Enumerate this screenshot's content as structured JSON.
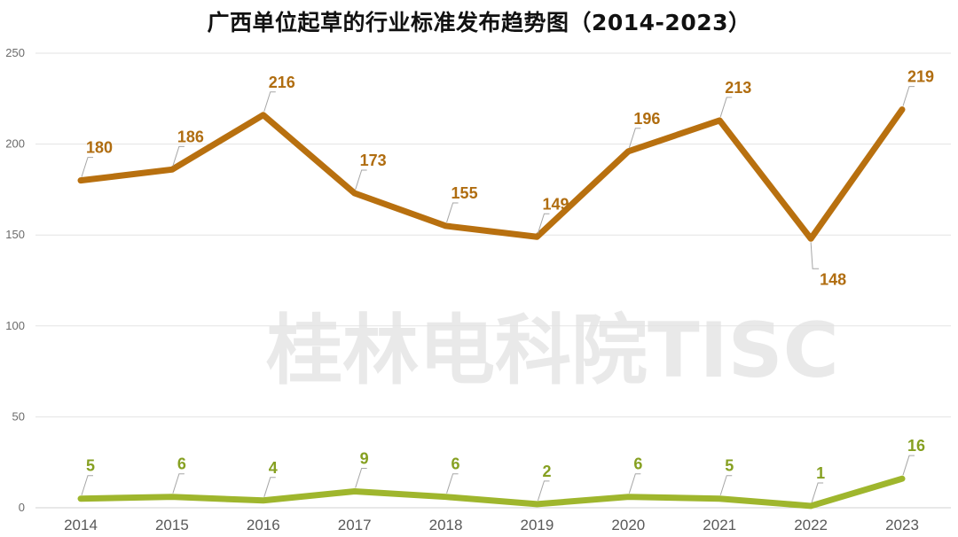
{
  "chart_data": {
    "type": "line",
    "title": "广西单位起草的行业标准发布趋势图（2014-2023）",
    "categories": [
      "2014",
      "2015",
      "2016",
      "2017",
      "2018",
      "2019",
      "2020",
      "2021",
      "2022",
      "2023"
    ],
    "series": [
      {
        "values": [
          180,
          186,
          216,
          173,
          155,
          149,
          196,
          213,
          148,
          219
        ],
        "color": "#b8700f"
      },
      {
        "values": [
          5,
          6,
          4,
          9,
          6,
          2,
          6,
          5,
          1,
          16
        ],
        "color": "#9fb62d"
      }
    ],
    "y_ticks": [
      0,
      50,
      100,
      150,
      200,
      250
    ],
    "ylim": [
      0,
      250
    ],
    "grid": true
  },
  "watermark": "桂林电科院TISC",
  "colors": {
    "label_series_1": "#b06d10",
    "label_series_2": "#86a021"
  }
}
